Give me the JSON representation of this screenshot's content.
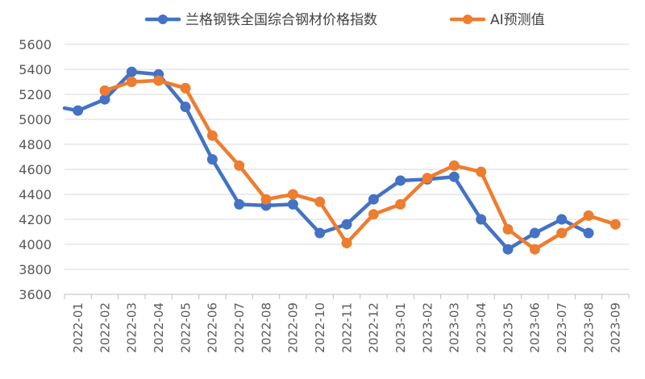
{
  "chart_data": {
    "type": "line",
    "title": "",
    "xlabel": "",
    "ylabel": "",
    "ylim": [
      3600,
      5600
    ],
    "yticks": [
      3600,
      3800,
      4000,
      4200,
      4400,
      4600,
      4800,
      5000,
      5200,
      5400,
      5600
    ],
    "grid": "horizontal",
    "legend": "top",
    "categories": [
      "2022-01",
      "2022-02",
      "2022-03",
      "2022-04",
      "2022-05",
      "2022-06",
      "2022-07",
      "2022-08",
      "2022-09",
      "2022-10",
      "2022-11",
      "2022-12",
      "2023-01",
      "2023-02",
      "2023-03",
      "2023-04",
      "2023-05",
      "2023-06",
      "2023-07",
      "2023-08",
      "2023-09"
    ],
    "series": [
      {
        "name": "兰格钢铁全国综合钢材价格指数",
        "color": "#4472C4",
        "values": [
          5070,
          5160,
          5380,
          5360,
          5100,
          4680,
          4320,
          4310,
          4320,
          4090,
          4160,
          4360,
          4510,
          4520,
          4540,
          4200,
          3960,
          4090,
          4200,
          4090,
          null
        ],
        "lead_in": 5090
      },
      {
        "name": "AI预测值",
        "color": "#ED7D31",
        "values": [
          null,
          5230,
          5300,
          5310,
          5250,
          4870,
          4630,
          4360,
          4400,
          4340,
          4010,
          4240,
          4320,
          4530,
          4630,
          4580,
          4120,
          3960,
          4090,
          4230,
          4160
        ]
      }
    ]
  }
}
